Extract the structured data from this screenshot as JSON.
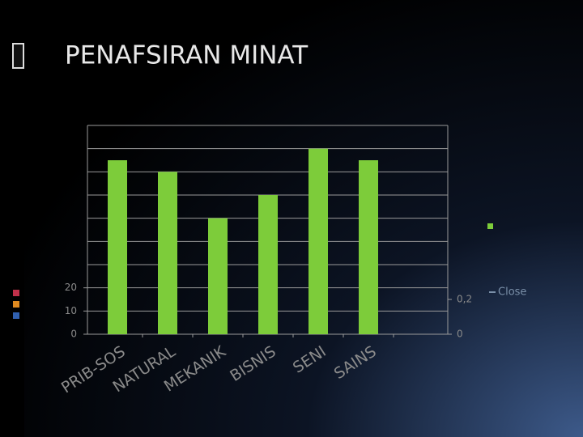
{
  "title": "PENAFSIRAN MINAT",
  "chart_data": {
    "type": "bar",
    "categories": [
      "PRIB-SOS",
      "NATURAL",
      "MEKANIK",
      "BISNIS",
      "SENI",
      "SAINS"
    ],
    "series": [
      {
        "color": "#7dcc3a",
        "values": [
          75,
          70,
          50,
          60,
          80,
          75
        ]
      },
      {
        "name": "Close",
        "color": "#7a8fa8",
        "axis": "y2",
        "values": [
          null,
          null,
          null,
          null,
          null,
          null
        ]
      }
    ],
    "ylim": [
      0,
      90
    ],
    "yticks": [
      0,
      10,
      20
    ],
    "ygrid": [
      0,
      10,
      20,
      30,
      40,
      50,
      60,
      70,
      80,
      90
    ],
    "y2lim": [
      0,
      1.2
    ],
    "y2ticks": [
      0,
      {
        "value": 0.2,
        "label": "0,2"
      }
    ],
    "grid": true
  }
}
